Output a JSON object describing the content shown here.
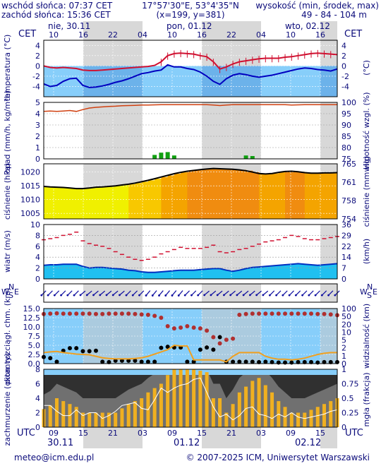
{
  "header": {
    "sunrise": "wschód słońca: 07:37 CET",
    "sunset": "zachód słońca: 15:36 CET",
    "coords": "17°57'30\"E, 53°4'35\"N",
    "grid": "(x=199, y=381)",
    "altitude_label": "wysokość (min, środek, max)",
    "altitude_values": "49 - 84 - 104 m"
  },
  "time_top": {
    "tz_left": "CET",
    "tz_right": "CET",
    "day_labels": [
      "nie, 30.11",
      "pon, 01.12",
      "wto, 02.12"
    ],
    "hour_labels": [
      "10",
      "16",
      "22",
      "04",
      "10",
      "16",
      "22",
      "04",
      "10",
      "16"
    ]
  },
  "time_bottom": {
    "tz_left": "UTC",
    "tz_right": "UTC",
    "hour_labels": [
      "09",
      "15",
      "21",
      "03",
      "09",
      "15",
      "21",
      "03",
      "09",
      "15"
    ],
    "date_labels": [
      "30.11",
      "01.12",
      "02.12"
    ]
  },
  "footer": {
    "email": "meteo@icm.edu.pl",
    "copyright": "© 2007-2025 ICM, Uniwersytet Warszawski"
  },
  "colors": {
    "panel_bg": "#87cefa",
    "temp_red": "#d01030",
    "temp_blue": "#0000c0",
    "humidity": "#d04010",
    "rain": "#10a010",
    "pressure": "#000000",
    "wind_mean": "#d01030",
    "vis_orange": "#f0a020",
    "cloud_bar": "#f0b020"
  },
  "chart_data": [
    {
      "type": "line",
      "panel": "temperature",
      "ylabel_left": "temperatura (°C)",
      "ylabel_right": "(°C)",
      "ylim": [
        -6,
        5
      ],
      "yticks": [
        -4,
        -2,
        0,
        2,
        4
      ],
      "series": [
        {
          "values": [
            0.0,
            -0.3,
            -0.4,
            -0.3,
            -0.4,
            -0.5,
            -0.8,
            -0.9,
            -0.9,
            -0.8,
            -0.7,
            -0.6,
            -0.5,
            -0.4,
            -0.3,
            -0.2,
            -0.1,
            0.1,
            0.8,
            2.0,
            2.4,
            2.5,
            2.4,
            2.3,
            2.0,
            1.8,
            0.8,
            -0.6,
            -0.2,
            0.4,
            0.8,
            1.0,
            1.2,
            1.4,
            1.5,
            1.5,
            1.5,
            1.7,
            1.8,
            2.0,
            2.2,
            2.4,
            2.5,
            2.4,
            2.3,
            2.2
          ]
        },
        {
          "values": [
            -3.5,
            -4.0,
            -3.8,
            -3.0,
            -2.5,
            -2.4,
            -3.8,
            -4.2,
            -4.1,
            -3.9,
            -3.6,
            -3.2,
            -2.9,
            -2.5,
            -2.0,
            -1.5,
            -1.3,
            -1.0,
            -0.8,
            0.2,
            -0.2,
            -0.2,
            -0.5,
            -0.7,
            -1.2,
            -2.0,
            -3.0,
            -3.6,
            -2.5,
            -1.8,
            -1.5,
            -1.7,
            -2.0,
            -2.2,
            -2.0,
            -1.8,
            -1.5,
            -1.2,
            -0.9,
            -0.6,
            -0.4,
            -0.5,
            -0.7,
            -0.8,
            -1.0,
            -0.6
          ]
        }
      ]
    },
    {
      "type": "bar",
      "panel": "precipitation-humidity",
      "ylabel_left": "opad (mm/h, kg/m²h)",
      "ylabel_right": "wilgotność wzgl. (%)",
      "ylim": [
        0,
        5
      ],
      "yticks": [
        0,
        1,
        2,
        3,
        4,
        5
      ],
      "y2lim": [
        75,
        100
      ],
      "y2ticks": [
        75,
        80,
        85,
        90,
        95,
        100
      ],
      "precipitation": [
        0,
        0,
        0,
        0,
        0,
        0,
        0,
        0,
        0,
        0,
        0,
        0,
        0,
        0,
        0,
        0,
        0,
        0.35,
        0.55,
        0.6,
        0.3,
        0,
        0,
        0,
        0,
        0,
        0,
        0,
        0,
        0,
        0,
        0.3,
        0.25,
        0,
        0,
        0,
        0,
        0,
        0,
        0,
        0,
        0,
        0,
        0,
        0,
        0
      ],
      "series": [
        {
          "values": [
            96.0,
            96.2,
            96.0,
            96.2,
            96.4,
            96.0,
            96.8,
            97.5,
            97.8,
            98.0,
            98.2,
            98.3,
            98.5,
            98.6,
            98.7,
            98.8,
            98.8,
            98.9,
            99.0,
            99.0,
            99.0,
            99.0,
            99.0,
            99.0,
            99.0,
            99.0,
            98.8,
            98.6,
            98.8,
            99.0,
            99.0,
            99.0,
            99.0,
            99.0,
            99.0,
            99.0,
            99.0,
            99.0,
            98.8,
            98.9,
            99.0,
            99.0,
            99.0,
            99.0,
            99.0,
            99.0
          ]
        }
      ]
    },
    {
      "type": "area",
      "panel": "pressure",
      "ylabel_left": "ciśnienie (hPa)",
      "ylabel_right": "ciśnienie (mm Hg)",
      "ylim": [
        1003,
        1023
      ],
      "yticks": [
        1005,
        1010,
        1015,
        1020
      ],
      "y2ticks": [
        754,
        758,
        761,
        765
      ],
      "series": [
        {
          "values": [
            1014.8,
            1014.6,
            1014.5,
            1014.4,
            1014.2,
            1014.0,
            1014.0,
            1014.2,
            1014.5,
            1014.6,
            1014.8,
            1015.0,
            1015.3,
            1015.6,
            1016.0,
            1016.5,
            1017.0,
            1017.6,
            1018.2,
            1018.8,
            1019.4,
            1019.9,
            1020.3,
            1020.6,
            1020.9,
            1021.1,
            1021.3,
            1021.2,
            1021.1,
            1021.0,
            1020.8,
            1020.5,
            1020.0,
            1019.5,
            1019.3,
            1019.5,
            1019.9,
            1020.2,
            1020.3,
            1020.1,
            1019.8,
            1019.6,
            1019.6,
            1019.7,
            1019.7,
            1019.8
          ]
        }
      ]
    },
    {
      "type": "line",
      "panel": "wind",
      "ylabel_left": "wiatr (m/s)",
      "ylabel_right": "(km/h)",
      "ylim": [
        0,
        10
      ],
      "yticks": [
        0,
        2,
        4,
        6,
        8,
        10
      ],
      "y2ticks": [
        0,
        7,
        14,
        22,
        29,
        36
      ],
      "series": [
        {
          "values": [
            7.2,
            7.4,
            7.6,
            8.0,
            8.2,
            8.6,
            7.0,
            6.5,
            6.2,
            6.0,
            5.6,
            5.0,
            4.5,
            4.0,
            3.6,
            3.4,
            3.6,
            4.0,
            4.6,
            5.0,
            5.4,
            5.8,
            5.6,
            5.6,
            5.6,
            5.8,
            6.2,
            5.0,
            4.8,
            5.0,
            5.4,
            5.6,
            6.0,
            6.4,
            6.8,
            7.0,
            7.2,
            7.6,
            8.0,
            7.8,
            7.4,
            7.2,
            7.2,
            7.4,
            7.6,
            7.8
          ]
        },
        {
          "values": [
            2.5,
            2.6,
            2.6,
            2.7,
            2.7,
            2.7,
            2.3,
            2.0,
            2.1,
            2.1,
            2.0,
            1.9,
            1.8,
            1.6,
            1.5,
            1.3,
            1.2,
            1.2,
            1.3,
            1.4,
            1.5,
            1.6,
            1.6,
            1.6,
            1.7,
            1.8,
            1.9,
            1.9,
            1.6,
            1.4,
            1.6,
            1.9,
            2.1,
            2.2,
            2.3,
            2.4,
            2.5,
            2.6,
            2.7,
            2.8,
            2.7,
            2.6,
            2.5,
            2.6,
            2.7,
            2.8
          ]
        }
      ]
    },
    {
      "type": "scatter",
      "panel": "wind-direction",
      "ylabel_left": "W S N E",
      "ylabel_right": "W S N E",
      "series": [
        {
          "values": [
            225,
            225,
            225,
            225,
            225,
            225,
            230,
            230,
            230,
            230,
            230,
            230,
            230,
            225,
            225,
            225,
            220,
            220,
            220,
            220,
            220,
            220,
            225,
            225,
            225,
            230,
            230,
            230,
            230,
            230,
            230,
            230,
            230,
            230,
            230,
            225,
            225,
            225,
            225,
            225,
            225,
            225,
            225,
            225,
            225,
            225
          ]
        }
      ]
    },
    {
      "type": "scatter",
      "panel": "visibility-cloudbase",
      "ylabel_left": "pion. rozciągł. chm. (km)",
      "ylabel_right": "widzialność (km)",
      "ylim": [
        0,
        15
      ],
      "yticks": [
        0.0,
        2.5,
        5.0,
        7.5,
        10.0,
        12.5,
        15.0
      ],
      "y2ticks": [
        0,
        1,
        2,
        5,
        10,
        20,
        50,
        100
      ],
      "series": [
        {
          "values": [
            13.5,
            13.6,
            13.7,
            13.6,
            13.6,
            13.6,
            13.6,
            13.6,
            13.5,
            13.5,
            13.6,
            13.6,
            13.6,
            13.6,
            13.5,
            13.4,
            13.3,
            13.0,
            12.5,
            10.2,
            9.6,
            9.8,
            10.2,
            9.8,
            9.6,
            9.0,
            7.2,
            5.5,
            6.5,
            6.8,
            13.3,
            13.5,
            13.6,
            13.6,
            13.6,
            13.6,
            13.6,
            13.6,
            13.6,
            13.6,
            13.6,
            13.6,
            13.5,
            13.5,
            13.4,
            13.2
          ]
        },
        {
          "values": [
            1.8,
            1.5,
            0.5,
            3.5,
            4.2,
            4.2,
            3.4,
            3.4,
            3.5,
            0.5,
            0.4,
            0.8,
            0.8,
            0.8,
            0.8,
            0.5,
            0.5,
            0.5,
            4.3,
            4.6,
            4.4,
            4.4,
            0.5,
            0.5,
            3.8,
            4.4,
            3.8,
            7.2,
            0.5,
            0.5,
            0.5,
            0.5,
            0.5,
            0.4,
            0.5,
            0.4,
            0.3,
            0.3,
            0.3,
            0.4,
            0.4,
            0.4,
            0.3,
            0.4,
            0.4,
            0.4
          ]
        },
        {
          "values": [
            3.0,
            3.2,
            3.3,
            3.0,
            2.8,
            2.6,
            2.5,
            2.4,
            2.0,
            1.6,
            1.4,
            1.3,
            1.3,
            1.3,
            1.4,
            1.6,
            2.0,
            2.6,
            3.2,
            3.8,
            5.0,
            4.8,
            4.8,
            1.0,
            1.0,
            1.0,
            1.0,
            1.0,
            0.5,
            2.0,
            3.0,
            3.0,
            3.0,
            3.0,
            2.0,
            1.5,
            1.2,
            1.2,
            1.0,
            1.2,
            1.5,
            2.0,
            2.5,
            2.8,
            3.0,
            3.0
          ]
        }
      ]
    },
    {
      "type": "bar",
      "panel": "cloudiness-fog",
      "ylabel_left": "zachmurzenie (oktanty)",
      "ylabel_right": "mgła (frakcja)",
      "ylim": [
        0,
        8
      ],
      "yticks": [
        0,
        2,
        4,
        6,
        8
      ],
      "y2lim": [
        0,
        1
      ],
      "y2ticks": [
        0,
        0.25,
        0.5,
        0.75,
        1
      ],
      "values": [
        2.5,
        3.0,
        4.0,
        3.6,
        3.2,
        2.8,
        2.0,
        2.0,
        2.0,
        2.0,
        2.0,
        2.0,
        2.6,
        3.2,
        3.6,
        4.0,
        4.8,
        5.4,
        6.0,
        7.2,
        8.0,
        8.0,
        8.0,
        8.0,
        7.8,
        7.6,
        4.0,
        4.0,
        2.0,
        3.2,
        4.8,
        5.6,
        6.4,
        6.8,
        5.8,
        4.8,
        3.6,
        2.8,
        2.0,
        2.0,
        2.0,
        2.4,
        2.8,
        3.2,
        3.6,
        4.0
      ],
      "series": [
        {
          "values": [
            3.0,
            3.0,
            2.2,
            1.6,
            1.6,
            2.4,
            1.6,
            2.0,
            2.0,
            1.2,
            1.6,
            2.2,
            3.0,
            3.2,
            3.4,
            2.6,
            2.4,
            3.8,
            5.4,
            4.8,
            5.4,
            5.8,
            6.0,
            6.6,
            6.8,
            4.8,
            2.8,
            1.4,
            1.8,
            1.0,
            1.6,
            2.6,
            2.8,
            1.8,
            1.6,
            1.2,
            1.8,
            1.4,
            2.0,
            1.4,
            1.2,
            1.4,
            1.6,
            1.8,
            2.2,
            2.4
          ]
        }
      ]
    }
  ]
}
